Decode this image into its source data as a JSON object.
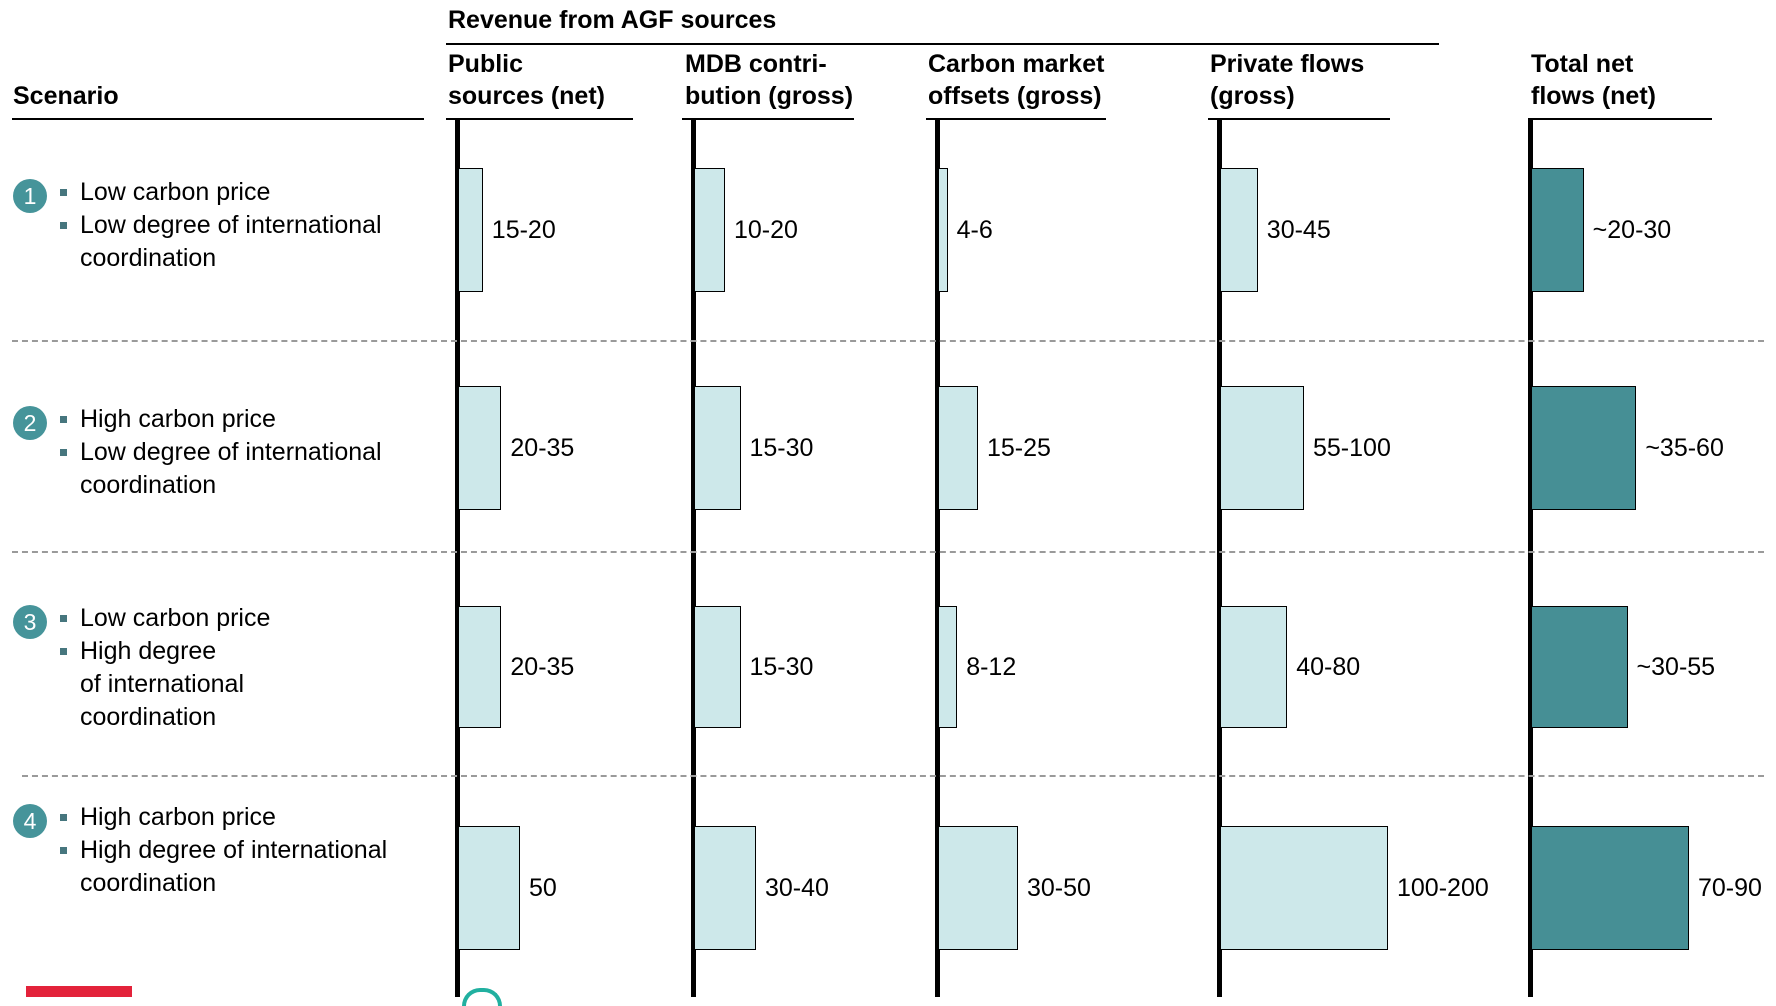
{
  "chart_data": {
    "type": "bar",
    "title": "Revenue from AGF sources",
    "row_header": "Scenario",
    "columns": [
      {
        "label_line1": "Public",
        "label_line2": "sources (net)",
        "style": "light",
        "max": 50
      },
      {
        "label_line1": "MDB contri-",
        "label_line2": "bution (gross)",
        "style": "light",
        "max": 40
      },
      {
        "label_line1": "Carbon market",
        "label_line2": "offsets (gross)",
        "style": "light",
        "max": 50
      },
      {
        "label_line1": "Private flows",
        "label_line2": "(gross)",
        "style": "light",
        "max": 200
      },
      {
        "label_line1": "Total net",
        "label_line2": "flows (net)",
        "style": "dark",
        "max": 90
      }
    ],
    "scenarios": [
      {
        "number": "1",
        "bullets": [
          "Low carbon price",
          "Low degree of international",
          "coordination"
        ]
      },
      {
        "number": "2",
        "bullets": [
          "High carbon price",
          "Low degree of international",
          "coordination"
        ]
      },
      {
        "number": "3",
        "bullets": [
          "Low carbon price",
          "High degree",
          "of international",
          "coordination"
        ]
      },
      {
        "number": "4",
        "bullets": [
          "High carbon price",
          "High degree of international",
          "coordination"
        ]
      }
    ],
    "values": [
      [
        {
          "label": "15-20",
          "low": 15,
          "high": 20
        },
        {
          "label": "10-20",
          "low": 10,
          "high": 20
        },
        {
          "label": "4-6",
          "low": 4,
          "high": 6
        },
        {
          "label": "30-45",
          "low": 30,
          "high": 45
        },
        {
          "label": "~20-30",
          "low": 20,
          "high": 30
        }
      ],
      [
        {
          "label": "20-35",
          "low": 20,
          "high": 35
        },
        {
          "label": "15-30",
          "low": 15,
          "high": 30
        },
        {
          "label": "15-25",
          "low": 15,
          "high": 25
        },
        {
          "label": "55-100",
          "low": 55,
          "high": 100
        },
        {
          "label": "~35-60",
          "low": 35,
          "high": 60
        }
      ],
      [
        {
          "label": "20-35",
          "low": 20,
          "high": 35
        },
        {
          "label": "15-30",
          "low": 15,
          "high": 30
        },
        {
          "label": "8-12",
          "low": 8,
          "high": 12
        },
        {
          "label": "40-80",
          "low": 40,
          "high": 80
        },
        {
          "label": "~30-55",
          "low": 30,
          "high": 55
        }
      ],
      [
        {
          "label": "50",
          "low": 50,
          "high": 50
        },
        {
          "label": "30-40",
          "low": 30,
          "high": 40
        },
        {
          "label": "30-50",
          "low": 30,
          "high": 50
        },
        {
          "label": "100-200",
          "low": 100,
          "high": 200
        },
        {
          "label": "70-90",
          "low": 70,
          "high": 90
        }
      ]
    ],
    "colors": {
      "light_bar": "#cde8ea",
      "dark_bar": "#468f95",
      "badge": "#46949a",
      "gridline": "#9a9a9a"
    }
  }
}
